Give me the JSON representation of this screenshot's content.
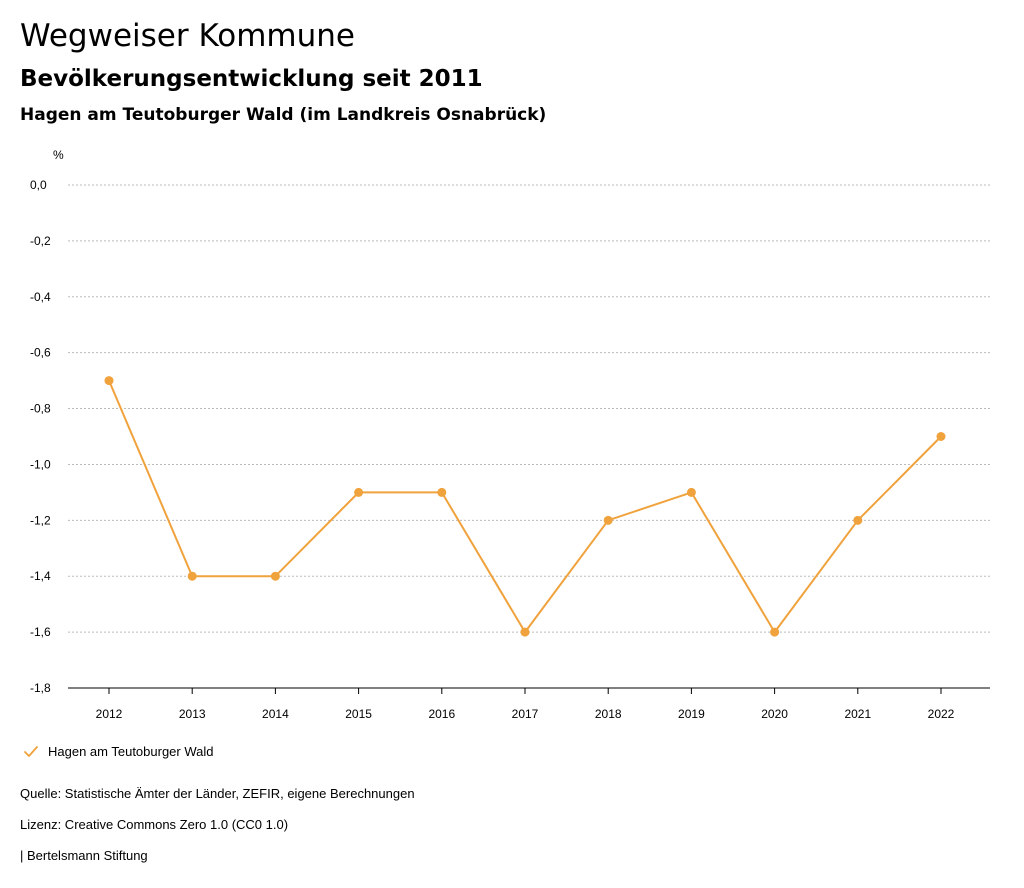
{
  "header": {
    "title": "Wegweiser Kommune",
    "subtitle": "Bevölkerungsentwicklung seit 2011",
    "region": "Hagen am Teutoburger Wald (im Landkreis Osnabrück)"
  },
  "footer": {
    "source": "Quelle: Statistische Ämter der Länder, ZEFIR, eigene Berechnungen",
    "license": "Lizenz: Creative Commons Zero 1.0 (CC0 1.0)",
    "brand": "| Bertelsmann Stiftung"
  },
  "colors": {
    "series": "#f0a23c",
    "grid": "#bbbbbb",
    "axis": "#000000"
  },
  "legend_icon": "checkmark-icon",
  "chart_data": {
    "type": "line",
    "title": "Bevölkerungsentwicklung seit 2011",
    "ylabel": "%",
    "xlabel": "",
    "ylim": [
      -1.8,
      0.0
    ],
    "yticks": [
      0.0,
      -0.2,
      -0.4,
      -0.6,
      -0.8,
      -1.0,
      -1.2,
      -1.4,
      -1.6,
      -1.8
    ],
    "ytick_labels": [
      "0,0",
      "-0,2",
      "-0,4",
      "-0,6",
      "-0,8",
      "-1,0",
      "-1,2",
      "-1,4",
      "-1,6",
      "-1,8"
    ],
    "grid": true,
    "legend_position": "bottom-left",
    "categories": [
      "2012",
      "2013",
      "2014",
      "2015",
      "2016",
      "2017",
      "2018",
      "2019",
      "2020",
      "2021",
      "2022"
    ],
    "series": [
      {
        "name": "Hagen am Teutoburger Wald",
        "values": [
          -0.7,
          -1.4,
          -1.4,
          -1.1,
          -1.1,
          -1.6,
          -1.2,
          -1.1,
          -1.6,
          -1.2,
          -0.9
        ]
      }
    ]
  }
}
